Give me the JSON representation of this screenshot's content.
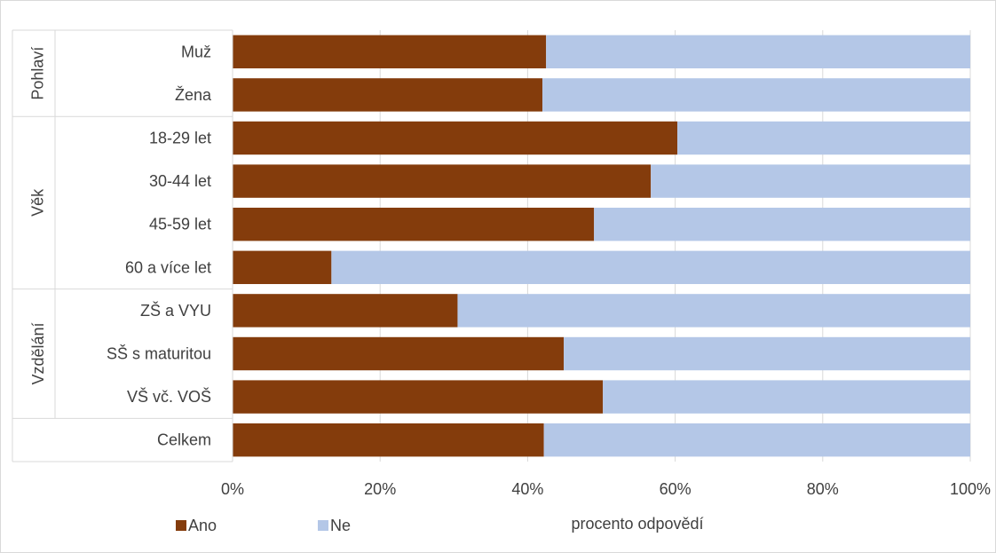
{
  "chart_data": {
    "type": "bar",
    "orientation": "horizontal",
    "stacked": true,
    "title": "",
    "xlabel": "procento odpovědí",
    "ylabel": "",
    "xlim": [
      0,
      100
    ],
    "x_ticks": [
      "0%",
      "20%",
      "40%",
      "60%",
      "80%",
      "100%"
    ],
    "x_tick_values": [
      0,
      20,
      40,
      60,
      80,
      100
    ],
    "grid": true,
    "legend_position": "bottom-left",
    "groups": [
      {
        "label": "Pohlaví",
        "categories": [
          "Muž",
          "Žena"
        ]
      },
      {
        "label": "Věk",
        "categories": [
          "18-29 let",
          "30-44 let",
          "45-59 let",
          "60 a více let"
        ]
      },
      {
        "label": "Vzdělání",
        "categories": [
          "ZŠ a VYU",
          "SŠ s maturitou",
          "VŠ vč. VOŠ"
        ]
      },
      {
        "label": "",
        "categories": [
          "Celkem"
        ]
      }
    ],
    "categories": [
      "Muž",
      "Žena",
      "18-29 let",
      "30-44 let",
      "45-59 let",
      "60 a více let",
      "ZŠ a VYU",
      "SŠ s maturitou",
      "VŠ vč. VOŠ",
      "Celkem"
    ],
    "series": [
      {
        "name": "Ano",
        "color": "#843c0c",
        "values": [
          42.5,
          42.0,
          60.3,
          56.7,
          49.0,
          13.4,
          30.5,
          44.9,
          50.2,
          42.2
        ]
      },
      {
        "name": "Ne",
        "color": "#b4c7e7",
        "values": [
          57.5,
          58.0,
          39.7,
          43.3,
          51.0,
          86.6,
          69.5,
          55.1,
          49.8,
          57.8
        ]
      }
    ]
  }
}
